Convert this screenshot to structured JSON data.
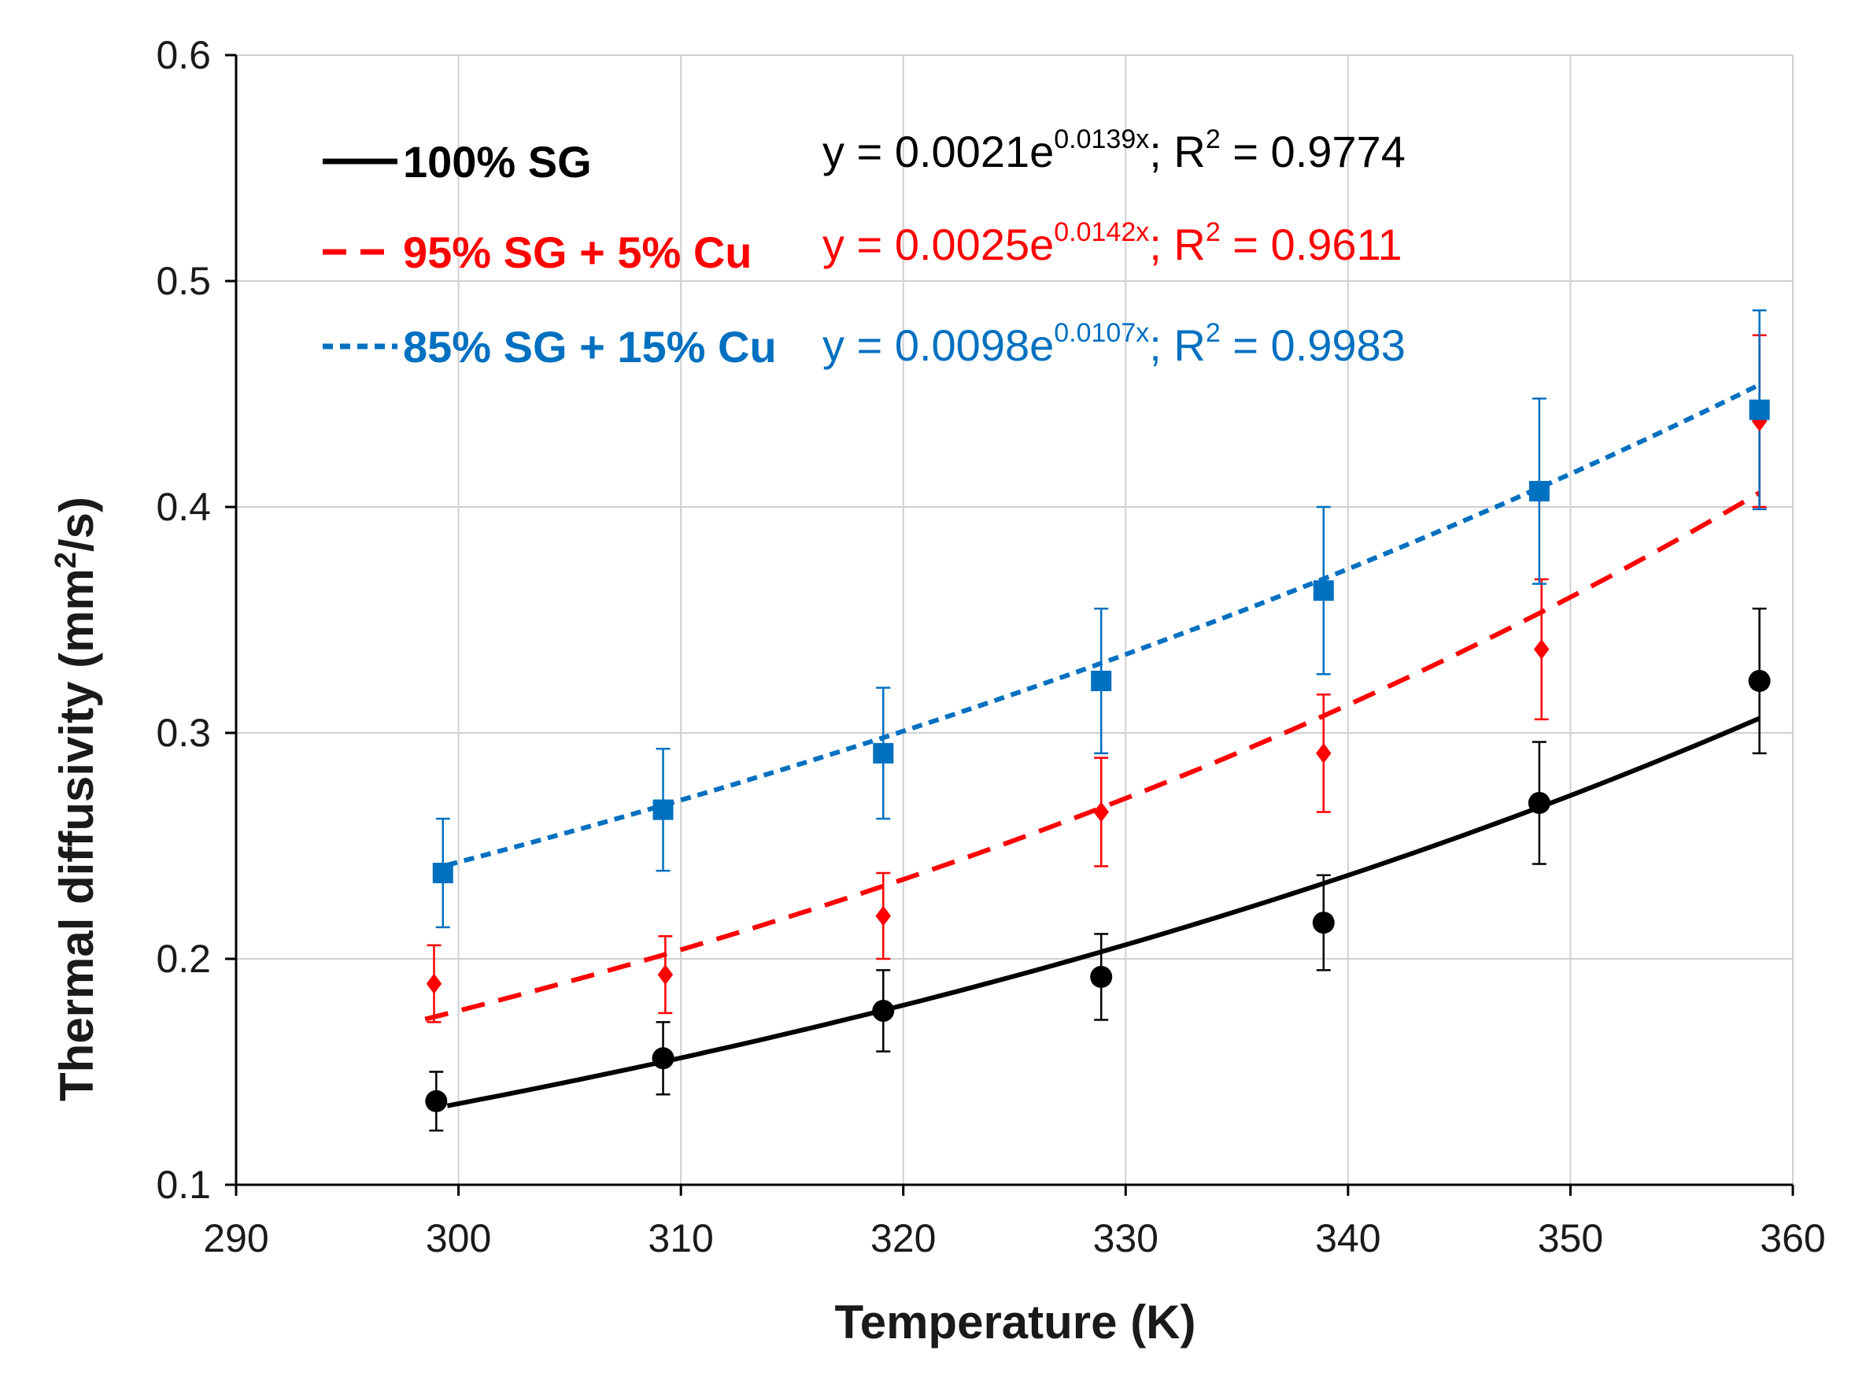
{
  "chart_data": {
    "type": "scatter",
    "xlabel": "Temperature (K)",
    "ylabel_main": "Thermal diffusivity (mm",
    "ylabel_sup": "2",
    "ylabel_tail": "/s)",
    "xlim": [
      290,
      360
    ],
    "ylim": [
      0.1,
      0.6
    ],
    "x_ticks": [
      290,
      300,
      310,
      320,
      330,
      340,
      350,
      360
    ],
    "y_ticks": [
      0.1,
      0.2,
      0.3,
      0.4,
      0.5,
      0.6
    ],
    "x_tick_labels": [
      "290",
      "300",
      "310",
      "320",
      "330",
      "340",
      "350",
      "360"
    ],
    "y_tick_labels": [
      "0.1",
      "0.2",
      "0.3",
      "0.4",
      "0.5",
      "0.6"
    ],
    "grid": true,
    "series": [
      {
        "name": "100% SG",
        "color": "#000000",
        "marker": "circle",
        "line_style": "solid",
        "x": [
          299,
          309.2,
          319.1,
          328.9,
          338.9,
          348.6,
          358.5
        ],
        "y": [
          0.137,
          0.156,
          0.177,
          0.192,
          0.216,
          0.269,
          0.323
        ],
        "err": [
          0.013,
          0.016,
          0.018,
          0.019,
          0.021,
          0.027,
          0.032
        ],
        "fit": {
          "a": 0.0021,
          "b": 0.0139,
          "x_range": [
            299.5,
            358.5
          ]
        },
        "eq_prefix": "y = 0.0021e",
        "eq_exp": "0.0139x",
        "eq_suffix": "; R",
        "eq_r2_sup": "2",
        "eq_r2_value": " = 0.9774"
      },
      {
        "name": "95% SG + 5% Cu",
        "color": "#ff0000",
        "marker": "diamond",
        "line_style": "dashed",
        "x": [
          298.9,
          309.3,
          319.1,
          328.9,
          338.9,
          348.7,
          358.5
        ],
        "y": [
          0.189,
          0.193,
          0.219,
          0.265,
          0.291,
          0.337,
          0.438
        ],
        "err": [
          0.017,
          0.017,
          0.019,
          0.024,
          0.026,
          0.031,
          0.038
        ],
        "fit": {
          "a": 0.0025,
          "b": 0.0142,
          "x_range": [
            298.5,
            358.5
          ]
        },
        "eq_prefix": "y = 0.0025e",
        "eq_exp": "0.0142x",
        "eq_suffix": "; R",
        "eq_r2_sup": "2",
        "eq_r2_value": " = 0.9611"
      },
      {
        "name": "85% SG + 15% Cu",
        "color": "#0070c0",
        "marker": "square",
        "line_style": "dotted",
        "x": [
          299.3,
          309.2,
          319.1,
          328.9,
          338.9,
          348.6,
          358.5
        ],
        "y": [
          0.238,
          0.266,
          0.291,
          0.323,
          0.363,
          0.407,
          0.443
        ],
        "err": [
          0.024,
          0.027,
          0.029,
          0.032,
          0.037,
          0.041,
          0.044
        ],
        "fit": {
          "a": 0.0098,
          "b": 0.0107,
          "x_range": [
            299.5,
            358.5
          ]
        },
        "eq_prefix": "y = 0.0098e",
        "eq_exp": "0.0107x",
        "eq_suffix": "; R",
        "eq_r2_sup": "2",
        "eq_r2_value": " = 0.9983"
      }
    ],
    "legend_placement": "top-left"
  }
}
